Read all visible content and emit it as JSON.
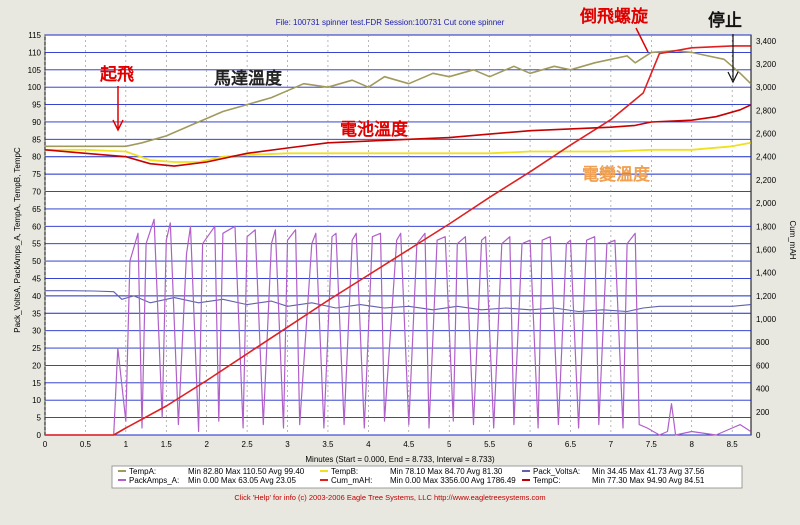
{
  "header": {
    "file_text": "File: 100731 spinner test.FDR   Session:100731 Cut cone spinner"
  },
  "annotations": {
    "takeoff": "起飛",
    "motor_temp": "馬達溫度",
    "battery_temp": "電池溫度",
    "esc_temp": "電變溫度",
    "inverted_spin": "倒飛螺旋",
    "stop": "停止"
  },
  "footer": {
    "text": "Click 'Help' for info  (c) 2003-2006 Eagle Tree Systems, LLC     http://www.eagletreesystems.com"
  },
  "legend": [
    {
      "name": "TempA:",
      "stats": "Min 82.80   Max 110.50   Avg 99.40",
      "color": "#a09a5c"
    },
    {
      "name": "TempB:",
      "stats": "Min 78.10   Max 84.70   Avg 81.30",
      "color": "#f0e020"
    },
    {
      "name": "Pack_VoltsA:",
      "stats": "Min 34.45   Max 41.73   Avg 37.56",
      "color": "#6060b0"
    },
    {
      "name": "PackAmps_A:",
      "stats": "Min 0.00   Max 63.05   Avg 23.05",
      "color": "#b060c8"
    },
    {
      "name": "Cum_mAH:",
      "stats": "Min 0.00   Max 3356.00   Avg 1786.49",
      "color": "#e02020"
    },
    {
      "name": "TempC:",
      "stats": "Min 77.30   Max 94.90   Avg 84.51",
      "color": "#c00000"
    }
  ],
  "colors": {
    "tempA": "#a09a5c",
    "tempB": "#f0e020",
    "volts": "#6060b0",
    "amps": "#b060c8",
    "mah": "#e02020",
    "tempC": "#c80000",
    "grid": "#1a2ac8",
    "annotation_red": "#e00000",
    "annotation_orange": "#f0a050"
  },
  "chart_data": {
    "type": "line",
    "title": "File: 100731 spinner test.FDR   Session:100731 Cut cone spinner",
    "xlabel": "Minutes (Start = 0.000, End = 8.733, Interval = 8.733)",
    "ylabel": "Pack_VoltsA, PackAmps_A, TempA, TempB, TempC",
    "ylabel_right": "Cum_mAH",
    "xlim": [
      0,
      8.733
    ],
    "ylim": [
      0,
      115
    ],
    "ylim_right": [
      0,
      3450
    ],
    "x_ticks": [
      "0",
      "0.5",
      "1",
      "1.5",
      "2",
      "2.5",
      "3",
      "3.5",
      "4",
      "4.5",
      "5",
      "5.5",
      "6",
      "6.5",
      "7",
      "7.5",
      "8",
      "8.5"
    ],
    "y_ticks": [
      "0",
      "5",
      "10",
      "15",
      "20",
      "25",
      "30",
      "35",
      "40",
      "45",
      "50",
      "55",
      "60",
      "65",
      "70",
      "75",
      "80",
      "85",
      "90",
      "95",
      "100",
      "105",
      "110",
      "115"
    ],
    "y_right_ticks": [
      "0",
      "200",
      "400",
      "600",
      "800",
      "1,000",
      "1,200",
      "1,400",
      "1,600",
      "1,800",
      "2,000",
      "2,200",
      "2,400",
      "2,600",
      "2,800",
      "3,000",
      "3,200",
      "3,400"
    ],
    "grid": true,
    "legend_position": "bottom",
    "series": [
      {
        "name": "TempA",
        "axis": "left",
        "color": "#a09a5c",
        "x": [
          0,
          0.5,
          0.9,
          1.0,
          1.2,
          1.5,
          1.8,
          2.0,
          2.2,
          2.5,
          2.8,
          3.0,
          3.2,
          3.5,
          3.8,
          4.0,
          4.2,
          4.5,
          4.8,
          5.0,
          5.3,
          5.5,
          5.8,
          6.0,
          6.3,
          6.5,
          6.8,
          7.0,
          7.2,
          7.3,
          7.5,
          7.8,
          8.0,
          8.2,
          8.4,
          8.6,
          8.73
        ],
        "y": [
          83,
          83,
          83,
          83,
          84,
          86,
          89,
          91,
          93,
          95,
          97,
          99,
          101,
          100,
          102,
          100,
          103,
          101,
          104,
          103,
          105,
          103,
          106,
          104,
          106,
          105,
          107,
          108,
          109,
          107,
          110,
          110.5,
          110,
          109,
          108,
          104,
          101
        ]
      },
      {
        "name": "TempB",
        "axis": "left",
        "color": "#f0e020",
        "x": [
          0,
          0.5,
          1.0,
          1.3,
          1.6,
          1.9,
          2.2,
          2.5,
          3.0,
          3.5,
          4.0,
          4.5,
          5.0,
          5.5,
          6.0,
          6.5,
          7.0,
          7.5,
          8.0,
          8.5,
          8.73
        ],
        "y": [
          82,
          82,
          81.5,
          79,
          78.5,
          78.5,
          80,
          80.5,
          81,
          81,
          81,
          81,
          81,
          81,
          81.5,
          81.5,
          81.5,
          82,
          82,
          83,
          84
        ]
      },
      {
        "name": "Pack_VoltsA",
        "axis": "left",
        "color": "#6060b0",
        "x": [
          0,
          0.3,
          0.6,
          0.85,
          0.95,
          1.1,
          1.3,
          1.6,
          1.9,
          2.2,
          2.5,
          2.8,
          3.0,
          3.3,
          3.6,
          3.9,
          4.2,
          4.5,
          4.8,
          5.1,
          5.4,
          5.7,
          6.0,
          6.3,
          6.6,
          6.9,
          7.2,
          7.4,
          7.6,
          7.9,
          8.2,
          8.5,
          8.73
        ],
        "y": [
          41.5,
          41.5,
          41.4,
          41.2,
          39,
          40,
          38,
          39.5,
          38,
          39,
          37.5,
          38.5,
          37,
          38,
          36.5,
          37.5,
          36.5,
          37,
          36,
          37,
          36,
          36.5,
          36,
          36.5,
          35.5,
          36,
          35.5,
          36.5,
          37,
          37,
          37,
          37,
          37.5
        ]
      },
      {
        "name": "PackAmps_A",
        "axis": "left",
        "color": "#b060c8",
        "x": [
          0,
          0.85,
          0.9,
          1.0,
          1.05,
          1.15,
          1.2,
          1.25,
          1.35,
          1.45,
          1.5,
          1.55,
          1.65,
          1.75,
          1.8,
          1.9,
          1.95,
          2.1,
          2.15,
          2.2,
          2.35,
          2.45,
          2.5,
          2.6,
          2.7,
          2.8,
          2.85,
          2.95,
          3.0,
          3.1,
          3.15,
          3.3,
          3.35,
          3.45,
          3.55,
          3.6,
          3.7,
          3.8,
          3.85,
          3.95,
          4.05,
          4.15,
          4.2,
          4.35,
          4.4,
          4.5,
          4.6,
          4.7,
          4.75,
          4.85,
          4.95,
          5.05,
          5.1,
          5.2,
          5.3,
          5.4,
          5.45,
          5.55,
          5.65,
          5.75,
          5.8,
          5.9,
          6.0,
          6.1,
          6.15,
          6.25,
          6.35,
          6.45,
          6.5,
          6.6,
          6.7,
          6.8,
          6.85,
          6.95,
          7.05,
          7.15,
          7.2,
          7.3,
          7.35,
          7.45,
          7.6,
          7.7,
          7.75,
          7.8,
          8.0,
          8.3,
          8.5,
          8.6,
          8.73
        ],
        "y": [
          0,
          0,
          25,
          4,
          50,
          58,
          2,
          55,
          62,
          5,
          56,
          61,
          3,
          52,
          60,
          1,
          55,
          60,
          4,
          58,
          60,
          2,
          57,
          59,
          3,
          55,
          59,
          2,
          56,
          59,
          3,
          55,
          58,
          2,
          57,
          58,
          3,
          56,
          58,
          2,
          57,
          58,
          4,
          56,
          58,
          3,
          55,
          58,
          2,
          56,
          57,
          4,
          55,
          57,
          3,
          56,
          57,
          2,
          55,
          57,
          3,
          55,
          56,
          2,
          56,
          57,
          3,
          55,
          56,
          2,
          56,
          57,
          3,
          55,
          56,
          2,
          55,
          58,
          3,
          2,
          0,
          1,
          9,
          0,
          1,
          0,
          2,
          3,
          1
        ]
      },
      {
        "name": "Cum_mAH",
        "axis": "right",
        "color": "#e02020",
        "x": [
          0,
          0.85,
          1.0,
          1.5,
          2.0,
          2.5,
          3.0,
          3.5,
          4.0,
          4.5,
          5.0,
          5.5,
          6.0,
          6.5,
          7.0,
          7.4,
          7.6,
          8.0,
          8.5,
          8.73
        ],
        "y": [
          0,
          0,
          60,
          250,
          470,
          700,
          930,
          1160,
          1380,
          1600,
          1820,
          2050,
          2270,
          2500,
          2720,
          2950,
          3290,
          3340,
          3356,
          3356
        ]
      },
      {
        "name": "TempC",
        "axis": "left",
        "color": "#c80000",
        "x": [
          0,
          0.5,
          1.0,
          1.3,
          1.6,
          2.0,
          2.5,
          3.0,
          3.5,
          4.0,
          4.5,
          5.0,
          5.5,
          6.0,
          6.5,
          7.0,
          7.3,
          7.5,
          8.0,
          8.3,
          8.6,
          8.73
        ],
        "y": [
          82,
          81,
          80,
          78,
          77.3,
          78.5,
          81,
          82.5,
          84,
          84.5,
          85,
          85.5,
          86.5,
          87.5,
          88,
          88.5,
          89,
          90,
          90.5,
          91.5,
          93.5,
          94.9
        ]
      }
    ]
  }
}
